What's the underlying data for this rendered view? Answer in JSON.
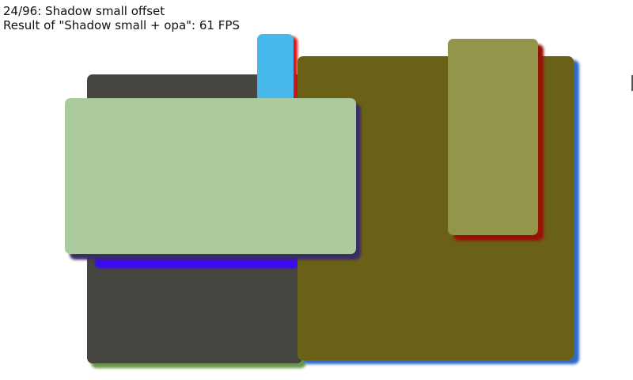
{
  "header": {
    "scene_title": "24/96: Shadow small offset",
    "result_text": "Result of \"Shadow small + opa\": 61 FPS"
  },
  "colors": {
    "dark_gray": "#454640",
    "green_shadow": "#6a9a48",
    "cyan": "#48b8ec",
    "red_shadow": "#e01010",
    "olive": "#6a6116",
    "blue_shadow": "#2f6acb",
    "khaki": "#93954b",
    "dark_red_shadow": "#9a1008",
    "indigo_shadow": "#3a0af0",
    "light_green": "#abcb9e",
    "purple_shadow": "#3a2d66"
  }
}
